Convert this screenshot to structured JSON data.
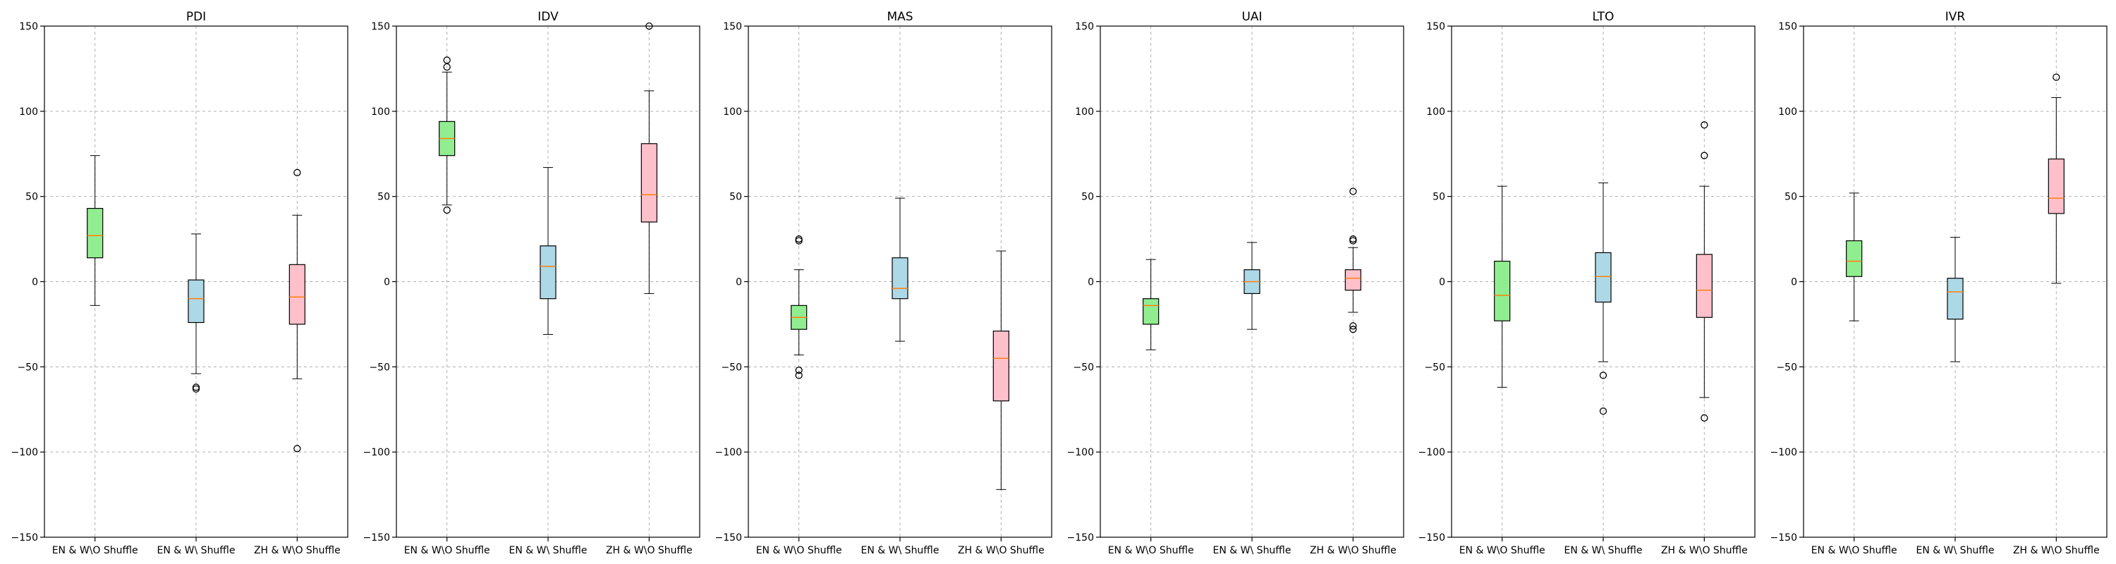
{
  "colors": {
    "EN & W\\O Shuffle": "#90ee90",
    "EN & W\\ Shuffle": "#add8e6",
    "ZH & W\\O Shuffle": "#ffc0cb",
    "median": "#ff7f0e"
  },
  "chart_data": [
    {
      "type": "box",
      "title": "PDI",
      "categories": [
        "EN & W\\O Shuffle",
        "EN & W\\ Shuffle",
        "ZH & W\\O Shuffle"
      ],
      "ylim": [
        -150,
        150
      ],
      "yticks": [
        -150,
        -100,
        -50,
        0,
        50,
        100,
        150
      ],
      "grid": true,
      "boxes": [
        {
          "whislo": -14,
          "q1": 14,
          "med": 27,
          "q3": 43,
          "whishi": 74,
          "fliers": []
        },
        {
          "whislo": -54,
          "q1": -24,
          "med": -10,
          "q3": 1,
          "whishi": 28,
          "fliers": [
            -62,
            -63
          ]
        },
        {
          "whislo": -57,
          "q1": -25,
          "med": -9,
          "q3": 10,
          "whishi": 39,
          "fliers": [
            64,
            -98
          ]
        }
      ]
    },
    {
      "type": "box",
      "title": "IDV",
      "categories": [
        "EN & W\\O Shuffle",
        "EN & W\\ Shuffle",
        "ZH & W\\O Shuffle"
      ],
      "ylim": [
        -150,
        150
      ],
      "yticks": [
        -150,
        -100,
        -50,
        0,
        50,
        100,
        150
      ],
      "grid": true,
      "boxes": [
        {
          "whislo": 45,
          "q1": 74,
          "med": 84,
          "q3": 94,
          "whishi": 123,
          "fliers": [
            42,
            126,
            130
          ]
        },
        {
          "whislo": -31,
          "q1": -10,
          "med": 9,
          "q3": 21,
          "whishi": 67,
          "fliers": []
        },
        {
          "whislo": -7,
          "q1": 35,
          "med": 51,
          "q3": 81,
          "whishi": 112,
          "fliers": [
            150
          ]
        }
      ]
    },
    {
      "type": "box",
      "title": "MAS",
      "categories": [
        "EN & W\\O Shuffle",
        "EN & W\\ Shuffle",
        "ZH & W\\O Shuffle"
      ],
      "ylim": [
        -150,
        150
      ],
      "yticks": [
        -150,
        -100,
        -50,
        0,
        50,
        100,
        150
      ],
      "grid": true,
      "boxes": [
        {
          "whislo": -43,
          "q1": -28,
          "med": -21,
          "q3": -14,
          "whishi": 7,
          "fliers": [
            24,
            25,
            -52,
            -55
          ]
        },
        {
          "whislo": -35,
          "q1": -10,
          "med": -4,
          "q3": 14,
          "whishi": 49,
          "fliers": []
        },
        {
          "whislo": -122,
          "q1": -70,
          "med": -45,
          "q3": -29,
          "whishi": 18,
          "fliers": []
        }
      ]
    },
    {
      "type": "box",
      "title": "UAI",
      "categories": [
        "EN & W\\O Shuffle",
        "EN & W\\ Shuffle",
        "ZH & W\\O Shuffle"
      ],
      "ylim": [
        -150,
        150
      ],
      "yticks": [
        -150,
        -100,
        -50,
        0,
        50,
        100,
        150
      ],
      "grid": true,
      "boxes": [
        {
          "whislo": -40,
          "q1": -25,
          "med": -14,
          "q3": -10,
          "whishi": 13,
          "fliers": []
        },
        {
          "whislo": -28,
          "q1": -7,
          "med": 0,
          "q3": 7,
          "whishi": 23,
          "fliers": []
        },
        {
          "whislo": -18,
          "q1": -5,
          "med": 2,
          "q3": 7,
          "whishi": 20,
          "fliers": [
            53,
            25,
            24,
            -26,
            -28
          ]
        }
      ]
    },
    {
      "type": "box",
      "title": "LTO",
      "categories": [
        "EN & W\\O Shuffle",
        "EN & W\\ Shuffle",
        "ZH & W\\O Shuffle"
      ],
      "ylim": [
        -150,
        150
      ],
      "yticks": [
        -150,
        -100,
        -50,
        0,
        50,
        100,
        150
      ],
      "grid": true,
      "boxes": [
        {
          "whislo": -62,
          "q1": -23,
          "med": -8,
          "q3": 12,
          "whishi": 56,
          "fliers": []
        },
        {
          "whislo": -47,
          "q1": -12,
          "med": 3,
          "q3": 17,
          "whishi": 58,
          "fliers": [
            -55,
            -76
          ]
        },
        {
          "whislo": -68,
          "q1": -21,
          "med": -5,
          "q3": 16,
          "whishi": 56,
          "fliers": [
            92,
            74,
            -80
          ]
        }
      ]
    },
    {
      "type": "box",
      "title": "IVR",
      "categories": [
        "EN & W\\O Shuffle",
        "EN & W\\ Shuffle",
        "ZH & W\\O Shuffle"
      ],
      "ylim": [
        -150,
        150
      ],
      "yticks": [
        -150,
        -100,
        -50,
        0,
        50,
        100,
        150
      ],
      "grid": true,
      "boxes": [
        {
          "whislo": -23,
          "q1": 3,
          "med": 12,
          "q3": 24,
          "whishi": 52,
          "fliers": []
        },
        {
          "whislo": -47,
          "q1": -22,
          "med": -6,
          "q3": 2,
          "whishi": 26,
          "fliers": []
        },
        {
          "whislo": -1,
          "q1": 40,
          "med": 49,
          "q3": 72,
          "whishi": 108,
          "fliers": [
            120
          ]
        }
      ]
    }
  ]
}
